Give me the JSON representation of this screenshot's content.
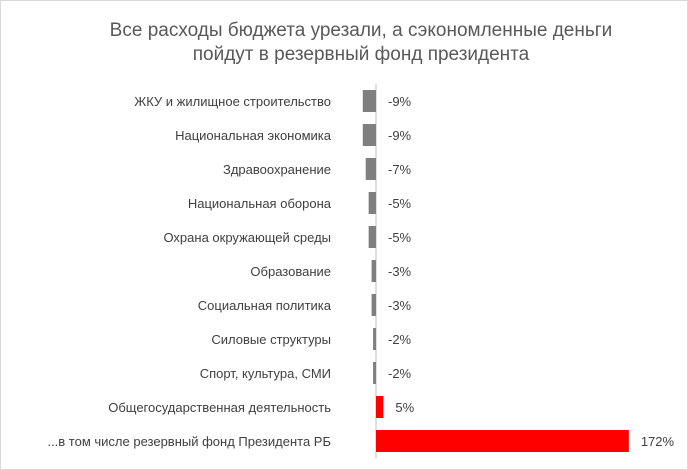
{
  "chart_data": {
    "type": "bar",
    "orientation": "horizontal",
    "title": "Все расходы бюджета урезали, а сэкономленные деньги пойдут в резервный фонд президента",
    "title_lines": [
      "Все расходы бюджета урезали, а сэкономленные деньги",
      "пойдут в резервный фонд президента"
    ],
    "categories": [
      "ЖКУ и жилищное строительство",
      "Национальная экономика",
      "Здравоохранение",
      "Национальная оборона",
      "Охрана окружающей среды",
      "Образование",
      "Социальная политика",
      "Силовые структуры",
      "Спорт, культура, СМИ",
      "Общегосударственная деятельность",
      "...в том числе резервный фонд Президента РБ"
    ],
    "values": [
      -9,
      -9,
      -7,
      -5,
      -5,
      -3,
      -3,
      -2,
      -2,
      5,
      172
    ],
    "value_labels": [
      "-9%",
      "-9%",
      "-7%",
      "-5%",
      "-5%",
      "-3%",
      "-3%",
      "-2%",
      "-2%",
      "5%",
      "172%"
    ],
    "colors": {
      "negative": "#7f7f7f",
      "positive": "#ff0000",
      "axis": "#bfbfbf",
      "text": "#404040",
      "title": "#595959"
    },
    "unit": "%",
    "grid": false,
    "legend": "none"
  }
}
